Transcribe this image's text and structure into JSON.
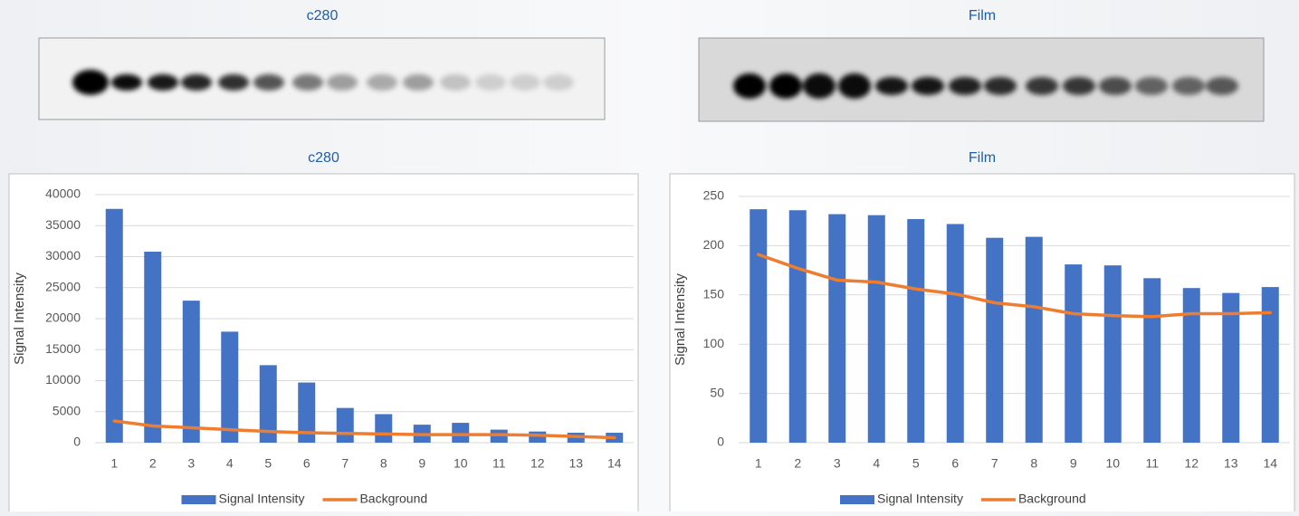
{
  "blots": [
    {
      "title": "c280"
    },
    {
      "title": "Film"
    }
  ],
  "chart_data": [
    {
      "type": "bar",
      "title": "c280",
      "ylabel": "Signal Intensity",
      "categories": [
        "1",
        "2",
        "3",
        "4",
        "5",
        "6",
        "7",
        "8",
        "9",
        "10",
        "11",
        "12",
        "13",
        "14"
      ],
      "ylim": [
        0,
        40000
      ],
      "yticks": [
        0,
        5000,
        10000,
        15000,
        20000,
        25000,
        30000,
        35000,
        40000
      ],
      "grid": true,
      "series": [
        {
          "name": "Signal Intensity",
          "color": "#4472c4",
          "values": [
            37700,
            30800,
            22900,
            17900,
            12500,
            9700,
            5600,
            4600,
            2900,
            3200,
            2100,
            1800,
            1600,
            1600
          ]
        },
        {
          "name": "Background",
          "type": "line",
          "color": "#ed7d31",
          "values": [
            3500,
            2700,
            2400,
            2100,
            1800,
            1600,
            1500,
            1400,
            1300,
            1300,
            1300,
            1200,
            1000,
            800
          ]
        }
      ]
    },
    {
      "type": "bar",
      "title": "Film",
      "ylabel": "Signal Intensity",
      "categories": [
        "1",
        "2",
        "3",
        "4",
        "5",
        "6",
        "7",
        "8",
        "9",
        "10",
        "11",
        "12",
        "13",
        "14"
      ],
      "ylim": [
        0,
        250
      ],
      "yticks": [
        0,
        50,
        100,
        150,
        200,
        250
      ],
      "grid": true,
      "series": [
        {
          "name": "Signal Intensity",
          "color": "#4472c4",
          "values": [
            237,
            236,
            232,
            231,
            227,
            222,
            208,
            209,
            181,
            180,
            167,
            157,
            152,
            158
          ]
        },
        {
          "name": "Background",
          "type": "line",
          "color": "#ed7d31",
          "values": [
            191,
            177,
            165,
            163,
            156,
            151,
            142,
            138,
            131,
            129,
            128,
            131,
            131,
            132
          ]
        }
      ]
    }
  ]
}
